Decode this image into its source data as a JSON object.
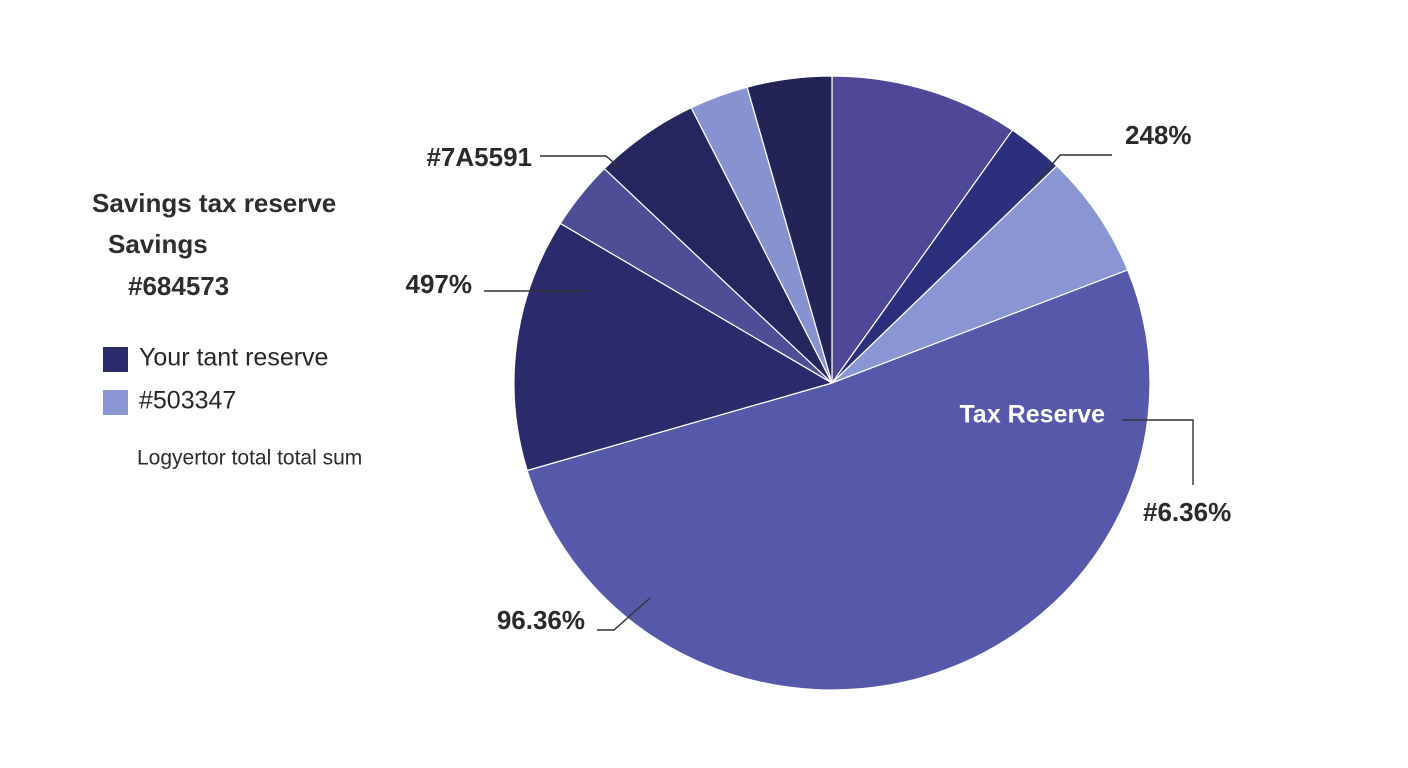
{
  "chart_data": {
    "type": "pie",
    "title": "Savings tax reserve",
    "subtitle": [
      "Savings",
      "#684573"
    ],
    "values": [
      9.6,
      2.9,
      6.5,
      51.4,
      13.3,
      3.6,
      5.4,
      3.0,
      4.3
    ],
    "colors": [
      "#4f4896",
      "#2c2f7c",
      "#8a96d3",
      "#5659a9",
      "#2b2b6b",
      "#4e4d96",
      "#26265f",
      "#8792d0",
      "#232357"
    ],
    "legend": [
      {
        "name": "Your tant reserve",
        "color": "#2b2b6b"
      },
      {
        "name": "#503347",
        "color": "#8a95d2"
      }
    ],
    "note": "Logyertor total total sum",
    "annotations": [
      "#7A5591",
      "497%",
      "248%",
      "Tax Reserve",
      "#6.36%",
      "96.36%"
    ]
  }
}
